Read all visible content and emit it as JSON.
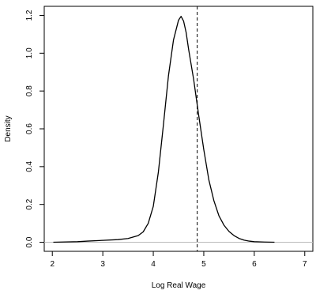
{
  "chart_data": {
    "type": "line",
    "xlabel": "Log Real Wage",
    "ylabel": "Density",
    "xlim": [
      1.84,
      7.16
    ],
    "ylim": [
      -0.048,
      1.248
    ],
    "x_ticks": [
      "2",
      "3",
      "4",
      "5",
      "6",
      "7"
    ],
    "y_ticks": [
      "0.0",
      "0.2",
      "0.4",
      "0.6",
      "0.8",
      "1.0",
      "1.2"
    ],
    "grid": false,
    "legend": "none",
    "series": [
      {
        "x": [
          2.02,
          2.5,
          2.7,
          3.0,
          3.3,
          3.5,
          3.7,
          3.8,
          3.9,
          4.0,
          4.1,
          4.2,
          4.3,
          4.4,
          4.5,
          4.55,
          4.6,
          4.65,
          4.7,
          4.8,
          4.9,
          5.0,
          5.1,
          5.2,
          5.3,
          5.4,
          5.5,
          5.6,
          5.7,
          5.8,
          5.9,
          6.0,
          6.2,
          6.4
        ],
        "y": [
          0.0,
          0.003,
          0.006,
          0.01,
          0.014,
          0.02,
          0.035,
          0.055,
          0.1,
          0.19,
          0.37,
          0.62,
          0.88,
          1.07,
          1.175,
          1.195,
          1.17,
          1.11,
          1.02,
          0.86,
          0.67,
          0.49,
          0.33,
          0.22,
          0.14,
          0.09,
          0.057,
          0.035,
          0.02,
          0.011,
          0.006,
          0.003,
          0.001,
          0.0
        ],
        "color": "#000000"
      }
    ],
    "reference_lines": [
      {
        "orientation": "vertical",
        "x": 4.87,
        "style": "dashed",
        "color": "#000000"
      },
      {
        "orientation": "horizontal",
        "y": 0,
        "style": "solid",
        "color": "#bbbbbb"
      }
    ]
  }
}
